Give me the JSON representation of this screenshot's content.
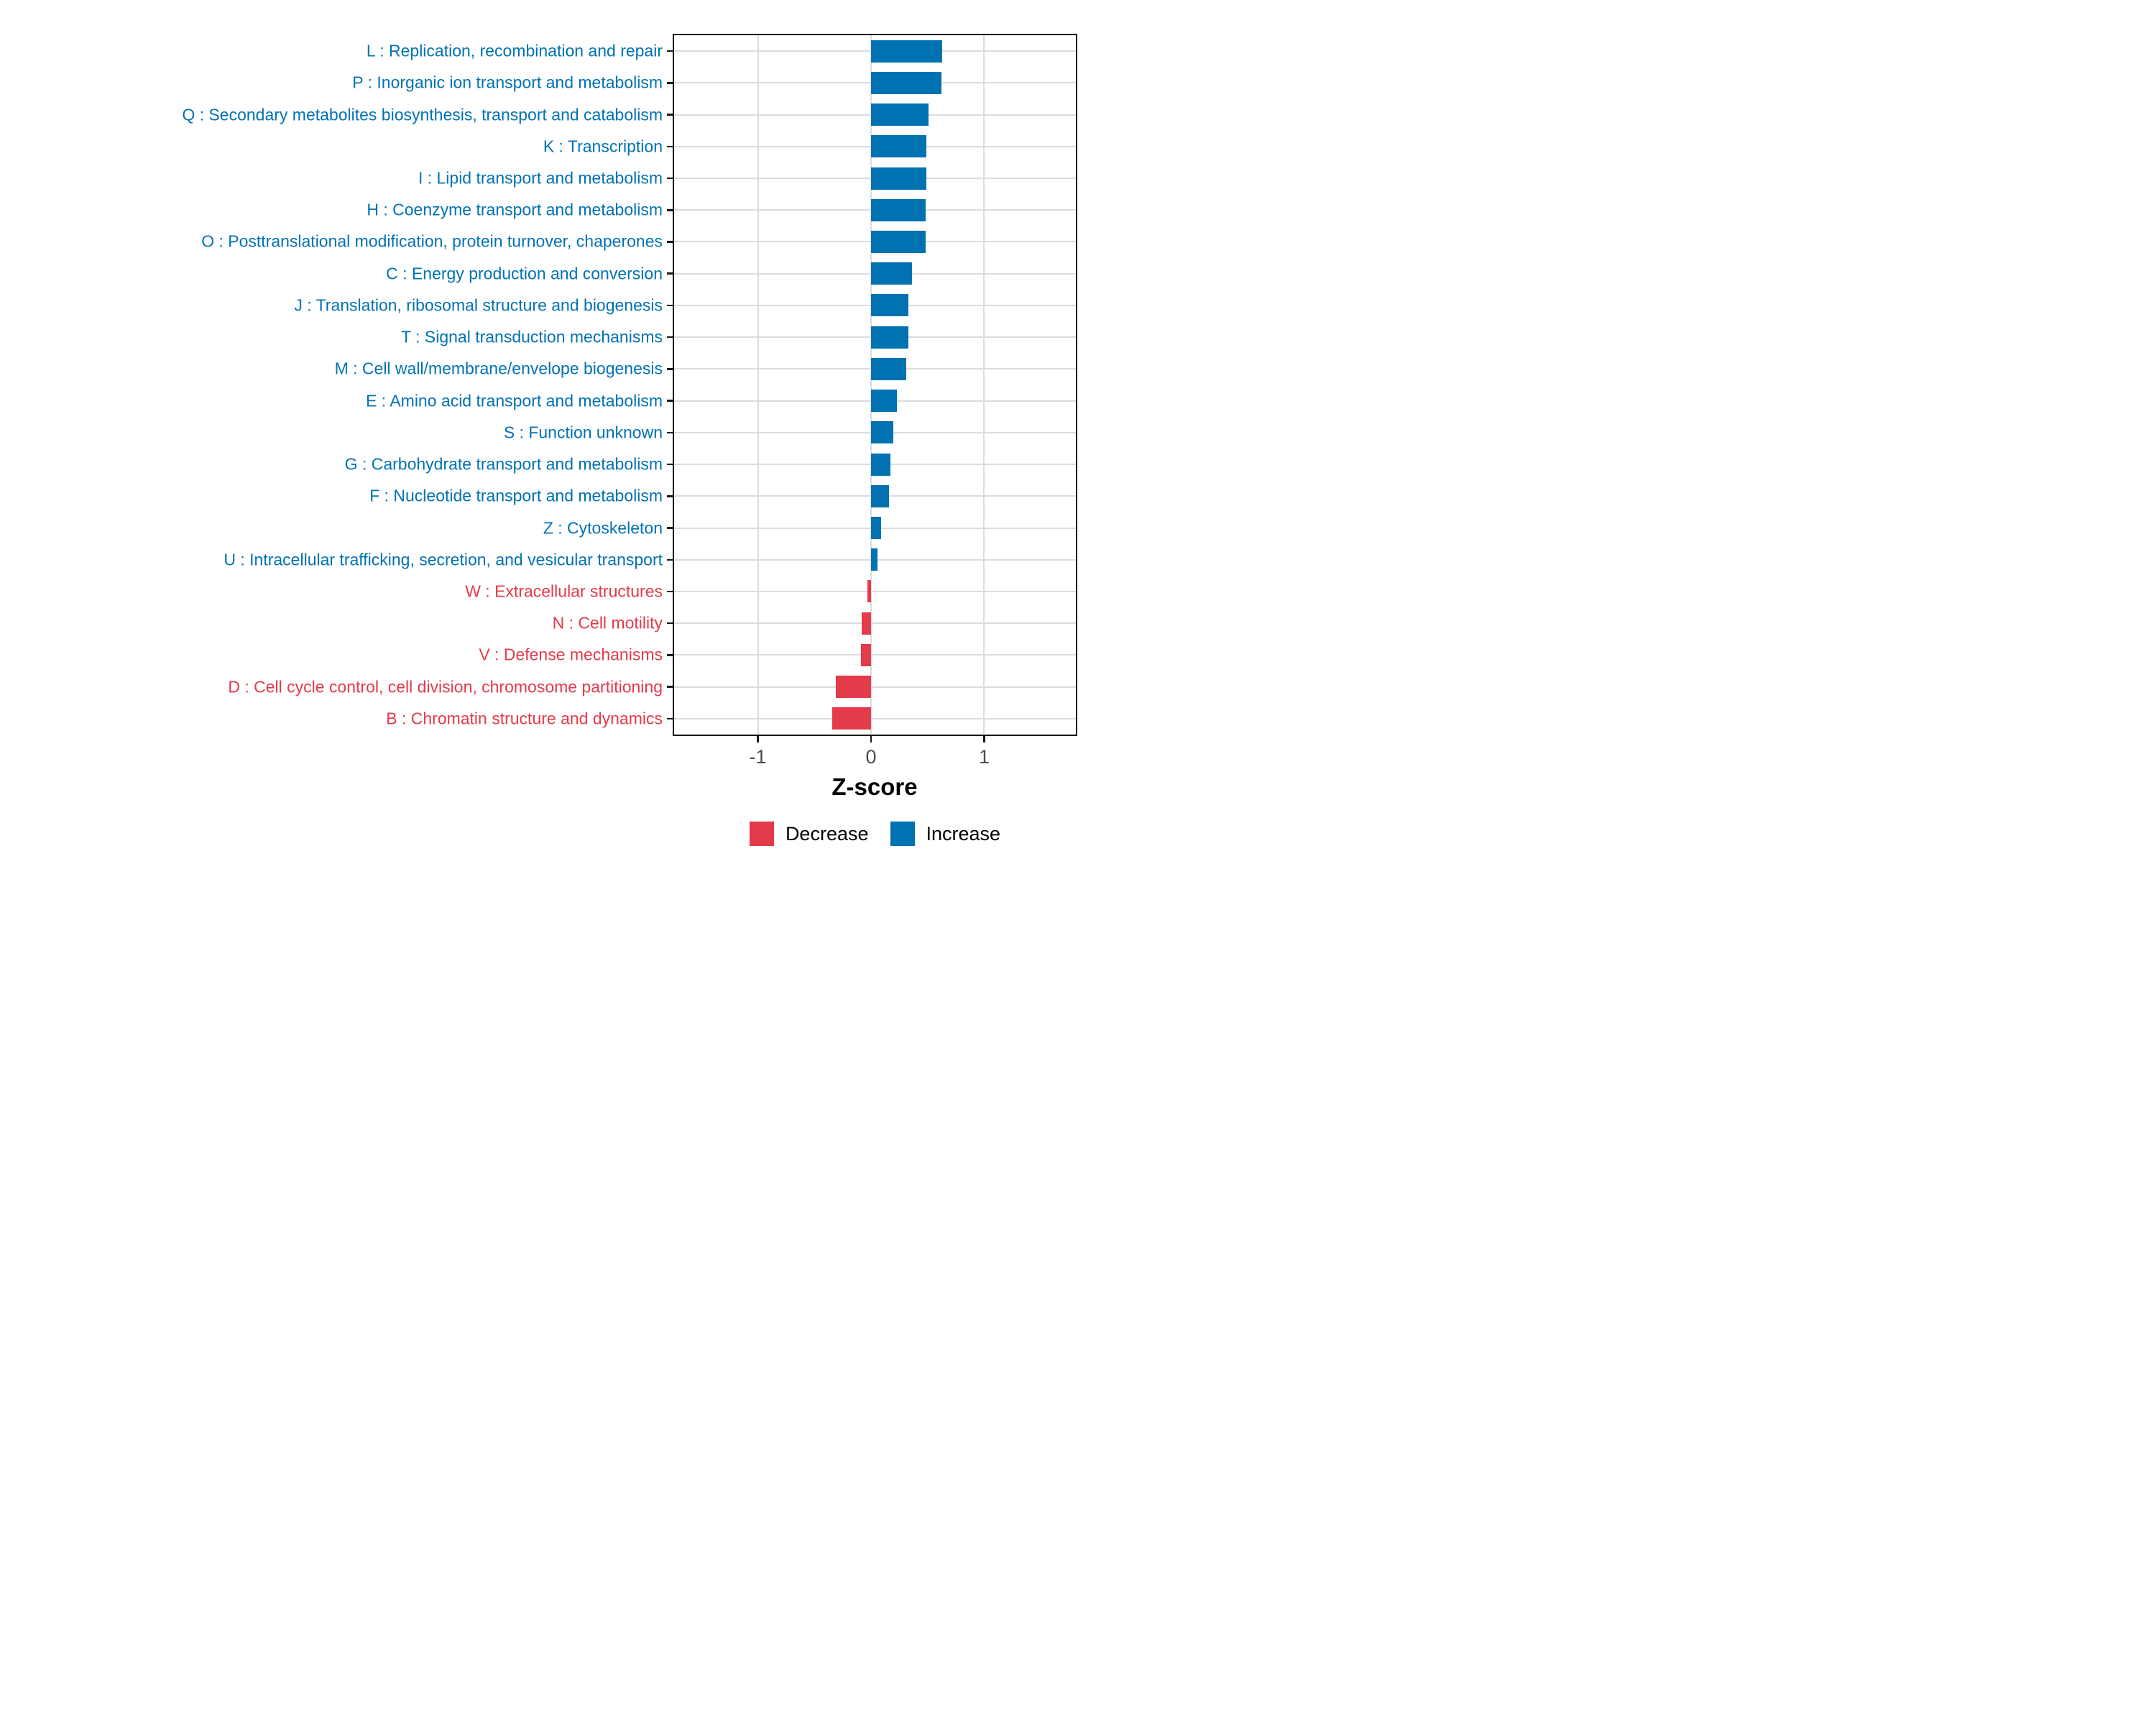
{
  "chart_data": {
    "type": "bar",
    "orientation": "horizontal",
    "title": "",
    "xlabel": "Z-score",
    "ylabel": "",
    "xlim": [
      -1.74,
      1.81
    ],
    "x_tick_values": [
      -1,
      0,
      1
    ],
    "x_tick_labels": [
      "-1",
      "0",
      "1"
    ],
    "grid": "major-vertical-at-ticks-and-horizontal-at-categories",
    "legend_position": "bottom-center",
    "colors": {
      "Increase": "#0072B2",
      "Decrease": "#E43A4C"
    },
    "legend": [
      {
        "label": "Decrease",
        "color": "#E43A4C"
      },
      {
        "label": "Increase",
        "color": "#0072B2"
      }
    ],
    "bars": [
      {
        "category": "L : Replication, recombination and repair",
        "value": 0.63,
        "group": "Increase"
      },
      {
        "category": "P : Inorganic ion transport and metabolism",
        "value": 0.62,
        "group": "Increase"
      },
      {
        "category": "Q : Secondary metabolites biosynthesis, transport and catabolism",
        "value": 0.51,
        "group": "Increase"
      },
      {
        "category": "K : Transcription",
        "value": 0.49,
        "group": "Increase"
      },
      {
        "category": "I : Lipid transport and metabolism",
        "value": 0.49,
        "group": "Increase"
      },
      {
        "category": "H : Coenzyme transport and metabolism",
        "value": 0.48,
        "group": "Increase"
      },
      {
        "category": "O : Posttranslational modification, protein turnover, chaperones",
        "value": 0.48,
        "group": "Increase"
      },
      {
        "category": "C : Energy production and conversion",
        "value": 0.36,
        "group": "Increase"
      },
      {
        "category": "J : Translation, ribosomal structure and biogenesis",
        "value": 0.33,
        "group": "Increase"
      },
      {
        "category": "T : Signal transduction mechanisms",
        "value": 0.33,
        "group": "Increase"
      },
      {
        "category": "M : Cell wall/membrane/envelope biogenesis",
        "value": 0.31,
        "group": "Increase"
      },
      {
        "category": "E : Amino acid transport and metabolism",
        "value": 0.23,
        "group": "Increase"
      },
      {
        "category": "S : Function unknown",
        "value": 0.2,
        "group": "Increase"
      },
      {
        "category": "G : Carbohydrate transport and metabolism",
        "value": 0.17,
        "group": "Increase"
      },
      {
        "category": "F : Nucleotide transport and metabolism",
        "value": 0.16,
        "group": "Increase"
      },
      {
        "category": "Z : Cytoskeleton",
        "value": 0.09,
        "group": "Increase"
      },
      {
        "category": "U : Intracellular trafficking, secretion, and vesicular transport",
        "value": 0.06,
        "group": "Increase"
      },
      {
        "category": "W : Extracellular structures",
        "value": -0.03,
        "group": "Decrease"
      },
      {
        "category": "N : Cell motility",
        "value": -0.08,
        "group": "Decrease"
      },
      {
        "category": "V : Defense mechanisms",
        "value": -0.09,
        "group": "Decrease"
      },
      {
        "category": "D : Cell cycle control, cell division, chromosome partitioning",
        "value": -0.31,
        "group": "Decrease"
      },
      {
        "category": "B : Chromatin structure and dynamics",
        "value": -0.34,
        "group": "Decrease"
      }
    ]
  }
}
